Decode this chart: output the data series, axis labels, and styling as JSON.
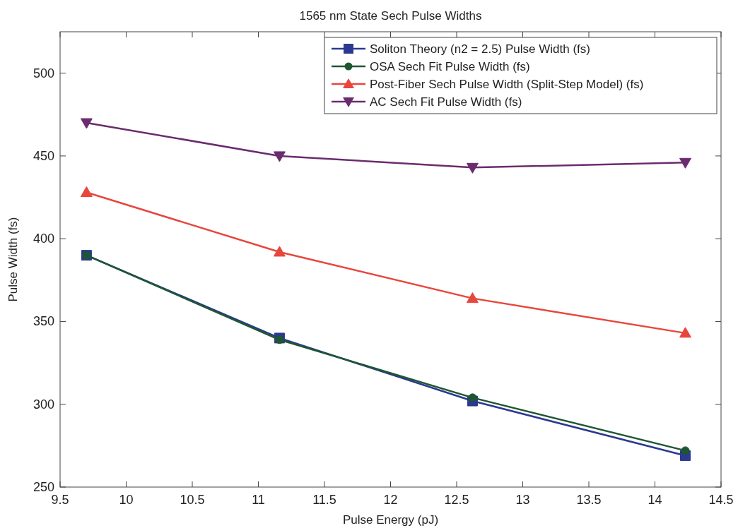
{
  "chart_data": {
    "type": "line",
    "title": "1565 nm State Sech Pulse Widths",
    "xlabel": "Pulse Energy (pJ)",
    "ylabel": "Pulse Width (fs)",
    "x": [
      9.7,
      11.16,
      12.62,
      14.23
    ],
    "series": [
      {
        "name": "Soliton Theory (n2 = 2.5) Pulse Width (fs)",
        "color": "#2b3990",
        "marker": "square",
        "values": [
          390,
          340,
          302,
          269
        ]
      },
      {
        "name": "OSA Sech Fit Pulse Width (fs)",
        "color": "#1e5631",
        "marker": "circle",
        "values": [
          390,
          339,
          304,
          272
        ]
      },
      {
        "name": "Post-Fiber Sech Pulse Width (Split-Step Model) (fs)",
        "color": "#e8463c",
        "marker": "triangle",
        "values": [
          428,
          392,
          364,
          343
        ]
      },
      {
        "name": "AC Sech Fit Pulse Width (fs)",
        "color": "#6b2c6e",
        "marker": "triangle-down",
        "values": [
          470,
          450,
          443,
          446
        ]
      }
    ],
    "xlim": [
      9.5,
      14.5
    ],
    "xticks": [
      9.5,
      10,
      10.5,
      11,
      11.5,
      12,
      12.5,
      13,
      13.5,
      14,
      14.5
    ],
    "ylim": [
      250,
      525
    ],
    "yticks": [
      250,
      300,
      350,
      400,
      450,
      500
    ],
    "grid": false,
    "legend": "top right",
    "line_style": "solid"
  }
}
